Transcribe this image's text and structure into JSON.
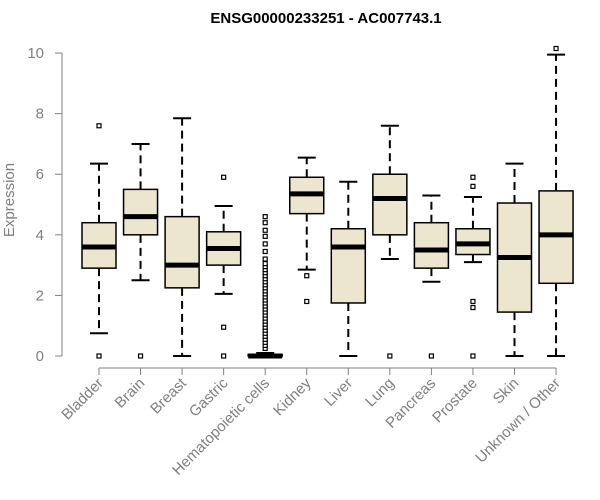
{
  "chart_data": {
    "type": "boxplot",
    "title": "ENSG00000233251 - AC007743.1",
    "xlabel": "",
    "ylabel": "Expression",
    "ylim": [
      0,
      10.2
    ],
    "yticks": [
      0,
      2,
      4,
      6,
      8,
      10
    ],
    "box_fill": "#ede6cf",
    "line_color": "#000000",
    "axis_color": "#808080",
    "categories": [
      "Bladder",
      "Brain",
      "Breast",
      "Gastric",
      "Hematopoietic cells",
      "Kidney",
      "Liver",
      "Lung",
      "Pancreas",
      "Prostate",
      "Skin",
      "Unknown / Other"
    ],
    "boxes": [
      {
        "name": "Bladder",
        "whisker_low": 0.75,
        "q1": 2.9,
        "median": 3.6,
        "q3": 4.4,
        "whisker_high": 6.35,
        "outliers": [
          0,
          7.6
        ]
      },
      {
        "name": "Brain",
        "whisker_low": 2.5,
        "q1": 4.0,
        "median": 4.6,
        "q3": 5.5,
        "whisker_high": 7.0,
        "outliers": [
          0
        ]
      },
      {
        "name": "Breast",
        "whisker_low": 0,
        "q1": 2.25,
        "median": 3.0,
        "q3": 4.6,
        "whisker_high": 7.85,
        "outliers": []
      },
      {
        "name": "Gastric",
        "whisker_low": 2.05,
        "q1": 3.0,
        "median": 3.55,
        "q3": 4.1,
        "whisker_high": 4.95,
        "outliers": [
          0,
          0.95,
          5.9
        ]
      },
      {
        "name": "Hematopoietic cells",
        "whisker_low": 0,
        "q1": 0,
        "median": 0,
        "q3": 0.05,
        "whisker_high": 0.1,
        "outliers": [
          0.25,
          0.35,
          0.45,
          0.55,
          0.65,
          0.75,
          0.85,
          0.95,
          1.05,
          1.15,
          1.25,
          1.35,
          1.45,
          1.55,
          1.65,
          1.75,
          1.85,
          1.95,
          2.05,
          2.15,
          2.25,
          2.35,
          2.45,
          2.55,
          2.65,
          2.75,
          2.85,
          2.95,
          3.05,
          3.2,
          3.45,
          3.7,
          3.95,
          4.15,
          4.4,
          4.6
        ]
      },
      {
        "name": "Kidney",
        "whisker_low": 2.85,
        "q1": 4.7,
        "median": 5.35,
        "q3": 5.9,
        "whisker_high": 6.55,
        "outliers": [
          1.8,
          2.65
        ]
      },
      {
        "name": "Liver",
        "whisker_low": 0,
        "q1": 1.75,
        "median": 3.6,
        "q3": 4.2,
        "whisker_high": 5.75,
        "outliers": []
      },
      {
        "name": "Lung",
        "whisker_low": 3.2,
        "q1": 4.0,
        "median": 5.2,
        "q3": 6.0,
        "whisker_high": 7.6,
        "outliers": [
          0
        ]
      },
      {
        "name": "Pancreas",
        "whisker_low": 2.45,
        "q1": 2.9,
        "median": 3.5,
        "q3": 4.4,
        "whisker_high": 5.3,
        "outliers": [
          0
        ]
      },
      {
        "name": "Prostate",
        "whisker_low": 3.1,
        "q1": 3.35,
        "median": 3.7,
        "q3": 4.2,
        "whisker_high": 5.25,
        "outliers": [
          0,
          1.6,
          1.8,
          5.6,
          5.9
        ]
      },
      {
        "name": "Skin",
        "whisker_low": 0,
        "q1": 1.45,
        "median": 3.25,
        "q3": 5.05,
        "whisker_high": 6.35,
        "outliers": []
      },
      {
        "name": "Unknown / Other",
        "whisker_low": 0,
        "q1": 2.4,
        "median": 4.0,
        "q3": 5.45,
        "whisker_high": 9.95,
        "outliers": [
          10.15
        ]
      }
    ]
  }
}
